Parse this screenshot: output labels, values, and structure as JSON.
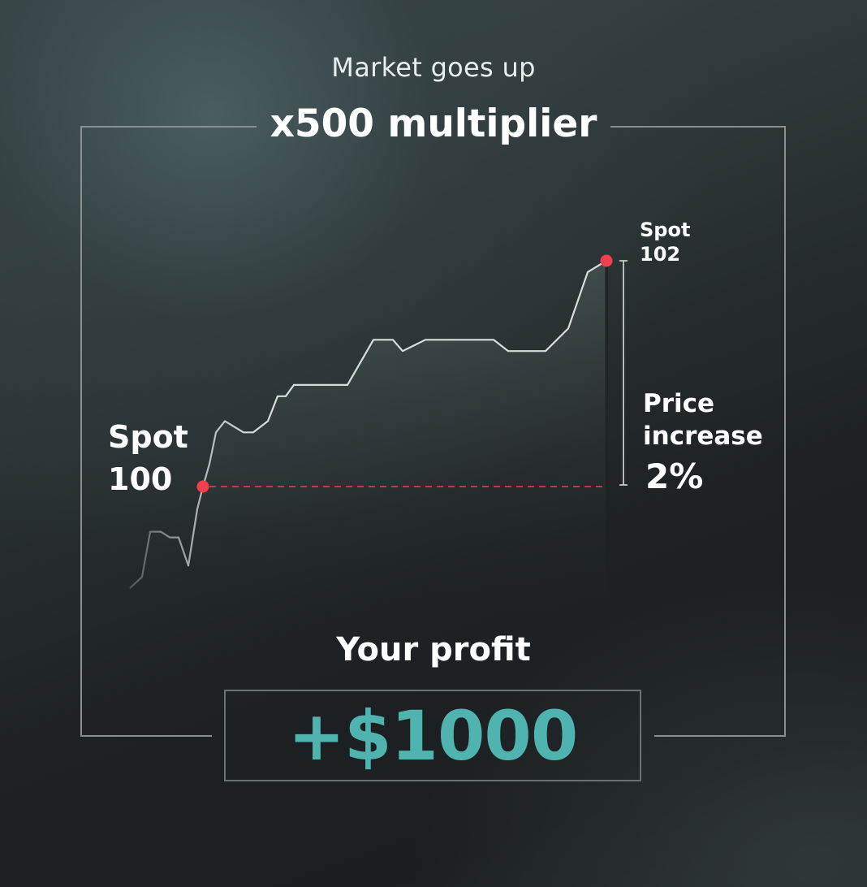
{
  "header": {
    "subtitle": "Market goes up",
    "title": "x500 multiplier"
  },
  "annotations": {
    "spot_start": "Spot 100",
    "spot_end": "Spot 102",
    "increase_label": "Price increase",
    "increase_value": "2%"
  },
  "profit": {
    "label": "Your profit",
    "value": "+$1000"
  },
  "colors": {
    "accent": "#4fb3b0",
    "marker": "#f0404c",
    "line": "#d8dcdc",
    "frame": "#8a9090"
  },
  "chart_data": {
    "type": "line",
    "series": [
      {
        "values": [
          99.1,
          99.2,
          99.6,
          99.6,
          99.55,
          99.55,
          99.3,
          99.8,
          100.0,
          100.2,
          100.48,
          100.58,
          100.48,
          100.48,
          100.58,
          100.8,
          100.8,
          100.9,
          100.9,
          101.3,
          101.3,
          101.2,
          101.3,
          101.3,
          101.2,
          101.2,
          101.4,
          101.9
        ],
        "start_value": 100,
        "end_value": 102
      }
    ],
    "start_marker": 100,
    "end_marker": 102,
    "change_percent": 2
  }
}
